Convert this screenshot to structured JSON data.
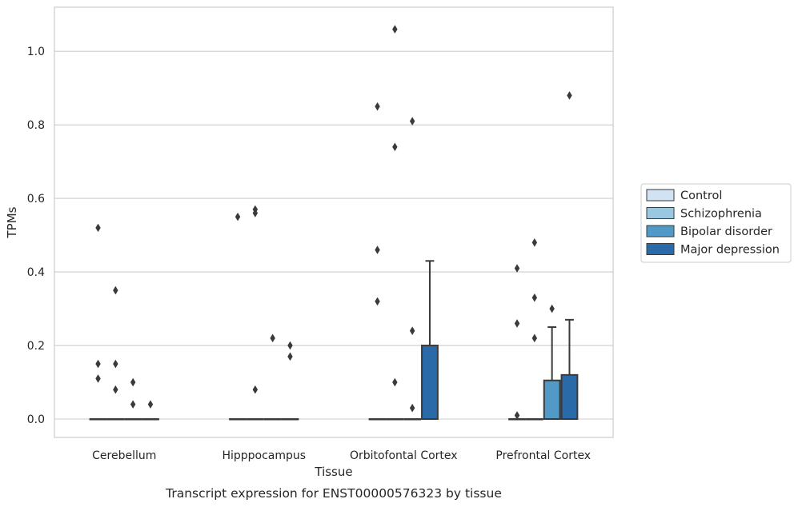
{
  "chart_data": {
    "type": "box",
    "title": "",
    "caption": "Transcript expression for ENST00000576323 by tissue",
    "xlabel": "Tissue",
    "ylabel": "TPMs",
    "ylim": [
      -0.05,
      1.12
    ],
    "yticks": [
      0.0,
      0.2,
      0.4,
      0.6,
      0.8,
      1.0
    ],
    "ytick_labels": [
      "0.0",
      "0.2",
      "0.4",
      "0.6",
      "0.8",
      "1.0"
    ],
    "grid": "horizontal",
    "legend_position": "right, outside plot",
    "categories": [
      "Cerebellum",
      "Hipppocampus",
      "Orbitofontal Cortex",
      "Prefrontal Cortex"
    ],
    "series": [
      {
        "name": "Control",
        "color": "#d1e2f2",
        "boxes": [
          {
            "q1": 0,
            "median": 0,
            "q3": 0,
            "whisker_low": 0,
            "whisker_high": 0,
            "outliers": [
              0.52,
              0.15,
              0.11
            ]
          },
          {
            "q1": 0,
            "median": 0,
            "q3": 0,
            "whisker_low": 0,
            "whisker_high": 0,
            "outliers": [
              0.55
            ]
          },
          {
            "q1": 0,
            "median": 0,
            "q3": 0,
            "whisker_low": 0,
            "whisker_high": 0,
            "outliers": [
              0.85,
              0.46,
              0.32
            ]
          },
          {
            "q1": 0,
            "median": 0,
            "q3": 0,
            "whisker_low": 0,
            "whisker_high": 0,
            "outliers": [
              0.41,
              0.26,
              0.01
            ]
          }
        ]
      },
      {
        "name": "Schizophrenia",
        "color": "#9ac8e0",
        "boxes": [
          {
            "q1": 0,
            "median": 0,
            "q3": 0,
            "whisker_low": 0,
            "whisker_high": 0,
            "outliers": [
              0.35,
              0.15,
              0.08
            ]
          },
          {
            "q1": 0,
            "median": 0,
            "q3": 0,
            "whisker_low": 0,
            "whisker_high": 0,
            "outliers": [
              0.57,
              0.56,
              0.08
            ]
          },
          {
            "q1": 0,
            "median": 0,
            "q3": 0,
            "whisker_low": 0,
            "whisker_high": 0,
            "outliers": [
              1.06,
              0.74,
              0.1
            ]
          },
          {
            "q1": 0,
            "median": 0,
            "q3": 0,
            "whisker_low": 0,
            "whisker_high": 0,
            "outliers": [
              0.48,
              0.33,
              0.22
            ]
          }
        ]
      },
      {
        "name": "Bipolar disorder",
        "color": "#5199c7",
        "boxes": [
          {
            "q1": 0,
            "median": 0,
            "q3": 0,
            "whisker_low": 0,
            "whisker_high": 0,
            "outliers": [
              0.1,
              0.04
            ]
          },
          {
            "q1": 0,
            "median": 0,
            "q3": 0,
            "whisker_low": 0,
            "whisker_high": 0,
            "outliers": [
              0.22
            ]
          },
          {
            "q1": 0,
            "median": 0,
            "q3": 0,
            "whisker_low": 0,
            "whisker_high": 0,
            "outliers": [
              0.81,
              0.24,
              0.03
            ]
          },
          {
            "q1": 0,
            "median": 0,
            "q3": 0.105,
            "whisker_low": 0,
            "whisker_high": 0.25,
            "outliers": [
              0.3
            ]
          }
        ]
      },
      {
        "name": "Major depression",
        "color": "#2a6aa8",
        "boxes": [
          {
            "q1": 0,
            "median": 0,
            "q3": 0,
            "whisker_low": 0,
            "whisker_high": 0,
            "outliers": [
              0.04
            ]
          },
          {
            "q1": 0,
            "median": 0,
            "q3": 0,
            "whisker_low": 0,
            "whisker_high": 0,
            "outliers": [
              0.2,
              0.17
            ]
          },
          {
            "q1": 0,
            "median": 0,
            "q3": 0.2,
            "whisker_low": 0,
            "whisker_high": 0.43,
            "outliers": []
          },
          {
            "q1": 0,
            "median": 0,
            "q3": 0.12,
            "whisker_low": 0,
            "whisker_high": 0.27,
            "outliers": [
              0.88
            ]
          }
        ]
      }
    ]
  }
}
